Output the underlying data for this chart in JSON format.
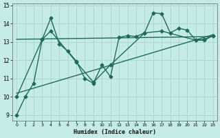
{
  "title": "",
  "xlabel": "Humidex (Indice chaleur)",
  "bg_color": "#c5ebe7",
  "grid_color": "#aad4cf",
  "line_color": "#1e6b5a",
  "xlim": [
    -0.5,
    23.5
  ],
  "ylim": [
    8.7,
    15.1
  ],
  "yticks": [
    9,
    10,
    11,
    12,
    13,
    14,
    15
  ],
  "xticks": [
    0,
    1,
    2,
    3,
    4,
    5,
    6,
    7,
    8,
    9,
    10,
    11,
    12,
    13,
    14,
    15,
    16,
    17,
    18,
    19,
    20,
    21,
    22,
    23
  ],
  "line1_x": [
    0,
    1,
    2,
    3,
    4,
    5,
    6,
    7,
    8,
    9,
    10,
    11,
    12,
    13,
    14,
    15,
    16,
    17,
    18,
    19,
    20,
    21,
    22,
    23
  ],
  "line1_y": [
    9.0,
    10.0,
    10.75,
    13.15,
    14.3,
    12.9,
    12.5,
    11.95,
    11.0,
    10.75,
    11.75,
    11.1,
    13.25,
    13.35,
    13.3,
    13.5,
    14.6,
    14.55,
    13.5,
    13.75,
    13.65,
    13.1,
    13.15,
    13.35
  ],
  "line2_x": [
    0,
    3,
    4,
    7,
    9,
    11,
    15,
    17,
    21,
    22,
    23
  ],
  "line2_y": [
    10.0,
    13.15,
    13.6,
    11.9,
    10.8,
    11.75,
    13.5,
    13.6,
    13.1,
    13.1,
    13.35
  ],
  "line3_x": [
    0,
    23
  ],
  "line3_y": [
    13.15,
    13.3
  ],
  "line4_x": [
    0,
    23
  ],
  "line4_y": [
    10.2,
    13.4
  ],
  "markersize": 2.5,
  "linewidth": 1.0
}
